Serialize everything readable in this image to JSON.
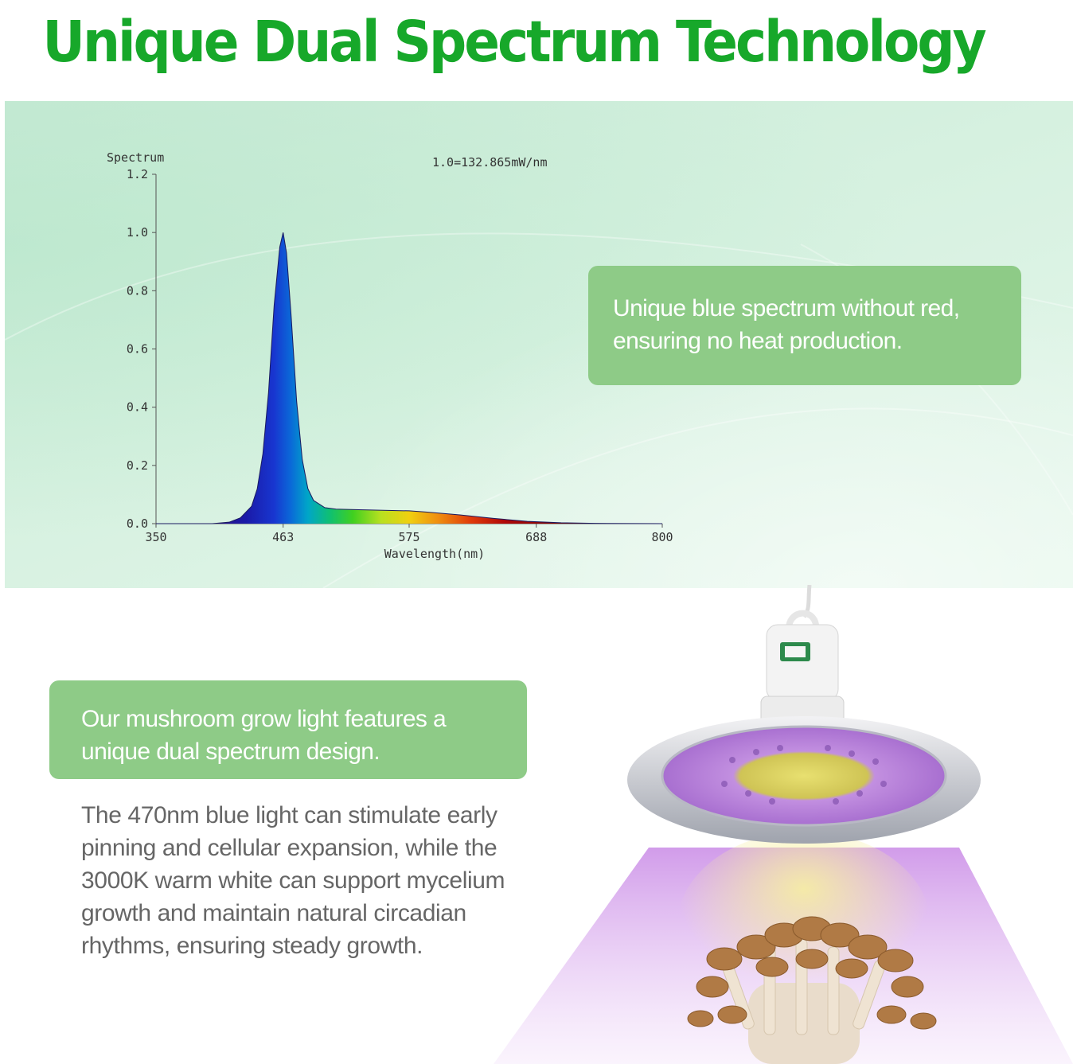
{
  "headline": "Unique Dual Spectrum Technology",
  "callout_blue": {
    "line1": "Unique blue spectrum without red,",
    "line2": "ensuring no heat production."
  },
  "callout_dual": {
    "line1": "Our mushroom grow light features a",
    "line2": "unique dual spectrum design."
  },
  "body_text": {
    "line1": "The 470nm blue light can stimulate early",
    "line2": "pinning and cellular expansion, while the",
    "line3": "3000K warm white can support mycelium",
    "line4": "growth and maintain natural circadian",
    "line5": "rhythms, ensuring steady growth."
  },
  "colors": {
    "headline": "#17a82a",
    "callout_bg": "#8ecb87",
    "body_text": "#666666",
    "lamp_light": "#c98ae6"
  },
  "chart_data": {
    "type": "area",
    "ylabel": "Spectrum",
    "xlabel": "Wavelength(nm)",
    "annotation": "1.0=132.865mW/nm",
    "xlim": [
      350,
      800
    ],
    "ylim": [
      0,
      1.2
    ],
    "x_ticks": [
      "350",
      "463",
      "575",
      "688",
      "800"
    ],
    "y_ticks": [
      "0.0",
      "0.2",
      "0.4",
      "0.6",
      "0.8",
      "1.0",
      "1.2"
    ],
    "grid": false,
    "fill": "spectral rainbow",
    "series": [
      {
        "x": [
          350,
          400,
          415,
          425,
          435,
          440,
          445,
          450,
          455,
          460,
          463,
          466,
          470,
          475,
          480,
          485,
          490,
          500,
          510,
          530,
          560,
          575,
          590,
          620,
          650,
          680,
          710,
          740,
          800
        ],
        "values": [
          0,
          0,
          0.005,
          0.02,
          0.06,
          0.12,
          0.24,
          0.45,
          0.75,
          0.95,
          1.0,
          0.93,
          0.72,
          0.42,
          0.22,
          0.12,
          0.08,
          0.055,
          0.05,
          0.048,
          0.045,
          0.044,
          0.04,
          0.03,
          0.018,
          0.008,
          0.003,
          0.001,
          0
        ]
      }
    ]
  }
}
